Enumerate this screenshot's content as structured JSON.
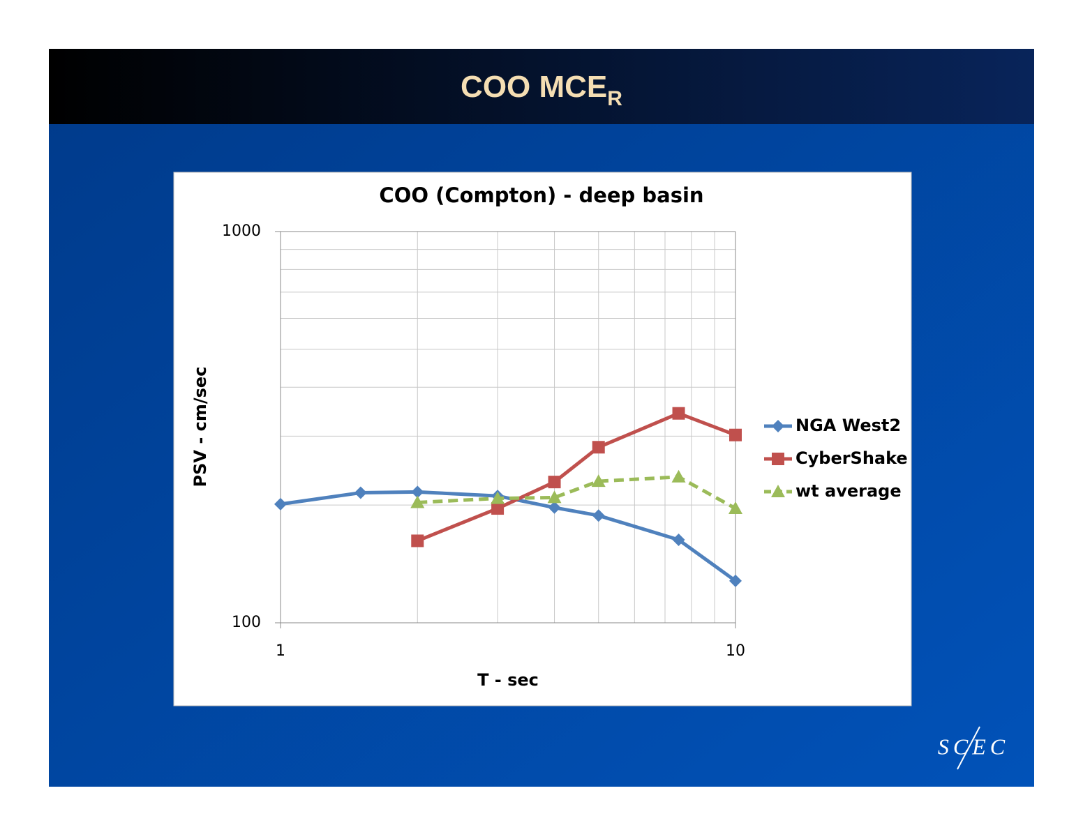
{
  "slide": {
    "title": "COO MCE",
    "title_subscript": "R",
    "logo": "SCEC"
  },
  "chart_data": {
    "type": "line",
    "title": "COO (Compton) - deep basin",
    "x_label": "T - sec",
    "y_label": "PSV - cm/sec",
    "xscale": "log",
    "yscale": "log",
    "xlim": [
      1,
      10
    ],
    "ylim": [
      100,
      1000
    ],
    "xticks": [
      1,
      10
    ],
    "yticks": [
      100,
      1000
    ],
    "grid": true,
    "minor_grid": true,
    "legend": "right",
    "series": [
      {
        "name": "NGA West2",
        "color": "#4f81bd",
        "marker": "diamond",
        "dash": false,
        "x": [
          1,
          1.5,
          2,
          3,
          4,
          5,
          7.5,
          10
        ],
        "values": [
          201,
          215,
          216,
          211,
          197,
          188,
          163,
          128
        ]
      },
      {
        "name": "CyberShake",
        "color": "#c0504d",
        "marker": "square",
        "dash": false,
        "x": [
          2,
          3,
          4,
          5,
          7.5,
          10
        ],
        "values": [
          162,
          196,
          229,
          281,
          343,
          302
        ]
      },
      {
        "name": "wt average",
        "color": "#9bbb59",
        "marker": "triangle",
        "dash": true,
        "x": [
          2,
          3,
          4,
          5,
          7.5,
          10
        ],
        "values": [
          203,
          208,
          209,
          230,
          236,
          196
        ]
      }
    ]
  }
}
